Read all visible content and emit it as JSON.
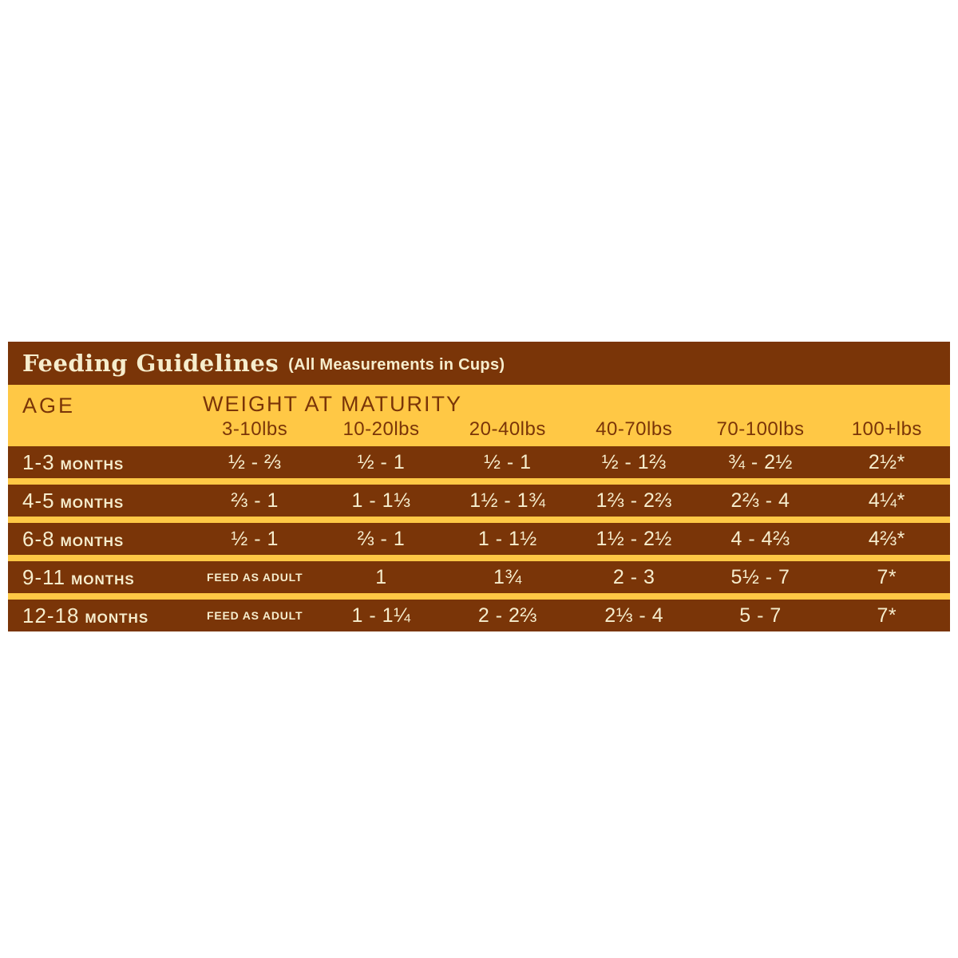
{
  "title": {
    "main": "Feeding Guidelines",
    "sub": "(All Measurements in Cups)"
  },
  "header": {
    "age_label": "AGE",
    "weight_label": "WEIGHT AT MATURITY",
    "weight_columns": [
      "3-10lbs",
      "10-20lbs",
      "20-40lbs",
      "40-70lbs",
      "70-100lbs",
      "100+lbs"
    ]
  },
  "rows": [
    {
      "age": "1-3",
      "unit": "MONTHS",
      "values": [
        "½ - ⅔",
        "½ - 1",
        "½ - 1",
        "½ - 1⅔",
        "¾ - 2½",
        "2½*"
      ]
    },
    {
      "age": "4-5",
      "unit": "MONTHS",
      "values": [
        "⅔ - 1",
        "1 - 1⅓",
        "1½ - 1¾",
        "1⅔ - 2⅔",
        "2⅔ - 4",
        "4¼*"
      ]
    },
    {
      "age": "6-8",
      "unit": "MONTHS",
      "values": [
        "½ - 1",
        "⅔ - 1",
        "1 - 1½",
        "1½ - 2½",
        "4 - 4⅔",
        "4⅔*"
      ]
    },
    {
      "age": "9-11",
      "unit": "MONTHS",
      "values": [
        "FEED AS ADULT",
        "1",
        "1¾",
        "2 - 3",
        "5½ - 7",
        "7*"
      ]
    },
    {
      "age": "12-18",
      "unit": "MONTHS",
      "values": [
        "FEED AS ADULT",
        "1 - 1¼",
        "2 - 2⅔",
        "2⅓ - 4",
        "5 - 7",
        "7*"
      ]
    }
  ],
  "colors": {
    "brown": "#7A3508",
    "yellow": "#FFC845",
    "cream": "#F6EDCD"
  },
  "chart_data": {
    "type": "table",
    "title": "Feeding Guidelines (All Measurements in Cups)",
    "columns": [
      "AGE",
      "3-10lbs",
      "10-20lbs",
      "20-40lbs",
      "40-70lbs",
      "70-100lbs",
      "100+lbs"
    ],
    "rows": [
      [
        "1-3 MONTHS",
        "½ - ⅔",
        "½ - 1",
        "½ - 1",
        "½ - 1⅔",
        "¾ - 2½",
        "2½*"
      ],
      [
        "4-5 MONTHS",
        "⅔ - 1",
        "1 - 1⅓",
        "1½ - 1¾",
        "1⅔ - 2⅔",
        "2⅔ - 4",
        "4¼*"
      ],
      [
        "6-8 MONTHS",
        "½ - 1",
        "⅔ - 1",
        "1 - 1½",
        "1½ - 2½",
        "4 - 4⅔",
        "4⅔*"
      ],
      [
        "9-11 MONTHS",
        "FEED AS ADULT",
        "1",
        "1¾",
        "2 - 3",
        "5½ - 7",
        "7*"
      ],
      [
        "12-18 MONTHS",
        "FEED AS ADULT",
        "1 - 1¼",
        "2 - 2⅔",
        "2⅓ - 4",
        "5 - 7",
        "7*"
      ]
    ]
  }
}
